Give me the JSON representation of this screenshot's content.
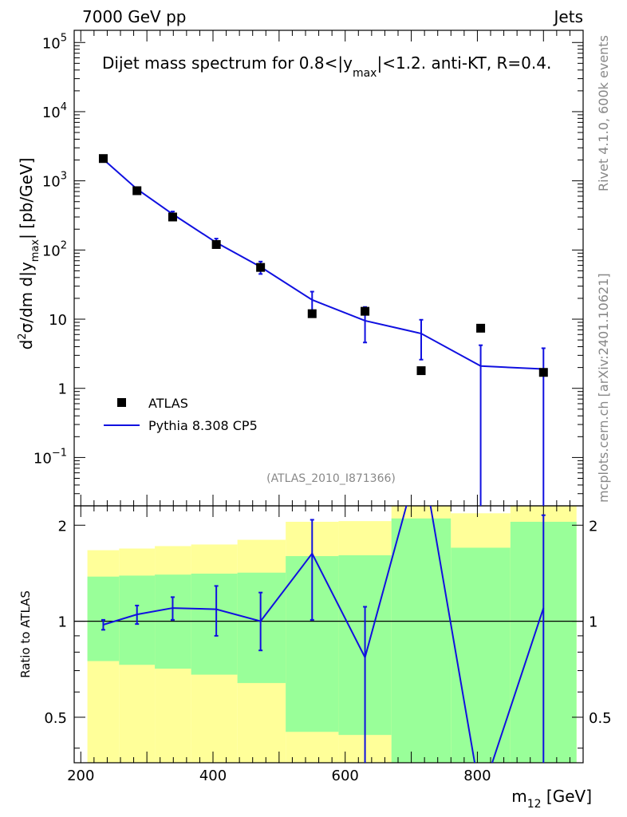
{
  "header": {
    "left": "7000 GeV pp",
    "right": "Jets"
  },
  "side_labels": {
    "rivet": "Rivet 4.1.0,  600k events",
    "mcplots": "mcplots.cern.ch [arXiv:2401.10621]"
  },
  "colors": {
    "mc": "#1010e0",
    "data": "#000000",
    "band_inner": "#99ff99",
    "band_outer": "#ffff99"
  },
  "chart_data": [
    {
      "type": "scatter",
      "panel": "main",
      "title": "Dijet mass spectrum for 0.8<|y_max|<1.2.  anti-KT, R=0.4.",
      "title_parts": [
        "Dijet mass spectrum for 0.8<|y",
        "max",
        "|<1.2.  anti-KT, R=0.4."
      ],
      "ylabel_parts": [
        "d",
        "2",
        "σ/dm d|y",
        "max",
        "| [pb/GeV]"
      ],
      "yscale": "log",
      "ylim": [
        0.02,
        150000
      ],
      "xlim": [
        190,
        960
      ],
      "legend": [
        "ATLAS",
        "Pythia 8.308 CP5"
      ],
      "analysis_id": "(ATLAS_2010_I871366)",
      "ytick_labels": [
        {
          "v": 100000,
          "base": "10",
          "exp": "5"
        },
        {
          "v": 10000,
          "base": "10",
          "exp": "4"
        },
        {
          "v": 1000,
          "base": "10",
          "exp": "3"
        },
        {
          "v": 100,
          "base": "10",
          "exp": "2"
        },
        {
          "v": 10,
          "base": "10",
          "exp": ""
        },
        {
          "v": 1,
          "base": "1",
          "exp": ""
        },
        {
          "v": 0.1,
          "base": "10",
          "exp": "−1"
        }
      ],
      "series": [
        {
          "name": "ATLAS",
          "kind": "markers",
          "x": [
            234,
            285,
            339,
            405,
            472,
            550,
            630,
            715,
            805,
            900
          ],
          "y": [
            2100,
            720,
            300,
            120,
            56,
            12,
            13,
            1.8,
            7.4,
            1.7
          ]
        },
        {
          "name": "Pythia 8.308 CP5",
          "kind": "line",
          "x": [
            234,
            285,
            339,
            405,
            472,
            550,
            630,
            715,
            805,
            900
          ],
          "y": [
            2050,
            760,
            330,
            128,
            57,
            19,
            9.5,
            6.2,
            2.1,
            1.9
          ],
          "err_lo": [
            2000,
            740,
            300,
            110,
            45,
            12,
            4.6,
            2.6,
            0.001,
            0.001
          ],
          "err_hi": [
            2100,
            780,
            360,
            146,
            68,
            25,
            15,
            9.8,
            4.2,
            3.8
          ]
        }
      ]
    },
    {
      "type": "line",
      "panel": "ratio",
      "ylabel": "Ratio to ATLAS",
      "xlabel_parts": [
        "m",
        "12",
        " [GeV]"
      ],
      "yscale": "log",
      "ylim": [
        0.36,
        2.3
      ],
      "xlim": [
        190,
        960
      ],
      "xticks": [
        200,
        400,
        600,
        800
      ],
      "ytick_labels": [
        {
          "v": 2,
          "t": "2"
        },
        {
          "v": 1,
          "t": "1"
        },
        {
          "v": 0.5,
          "t": "0.5"
        }
      ],
      "bands": [
        {
          "x0": 210,
          "x1": 258,
          "inner": [
            0.75,
            1.38
          ],
          "outer": [
            0.35,
            1.67
          ]
        },
        {
          "x0": 258,
          "x1": 312,
          "inner": [
            0.73,
            1.39
          ],
          "outer": [
            0.35,
            1.69
          ]
        },
        {
          "x0": 312,
          "x1": 367,
          "inner": [
            0.71,
            1.4
          ],
          "outer": [
            0.35,
            1.72
          ]
        },
        {
          "x0": 367,
          "x1": 437,
          "inner": [
            0.68,
            1.41
          ],
          "outer": [
            0.35,
            1.74
          ]
        },
        {
          "x0": 437,
          "x1": 510,
          "inner": [
            0.64,
            1.42
          ],
          "outer": [
            0.35,
            1.8
          ]
        },
        {
          "x0": 510,
          "x1": 590,
          "inner": [
            0.45,
            1.6
          ],
          "outer": [
            0.36,
            2.05
          ]
        },
        {
          "x0": 590,
          "x1": 670,
          "inner": [
            0.44,
            1.61
          ],
          "outer": [
            0.35,
            2.06
          ]
        },
        {
          "x0": 670,
          "x1": 760,
          "inner": [
            0.36,
            2.1
          ],
          "outer": [
            0.36,
            2.5
          ]
        },
        {
          "x0": 760,
          "x1": 850,
          "inner": [
            0.36,
            1.7
          ],
          "outer": [
            0.36,
            2.18
          ]
        },
        {
          "x0": 850,
          "x1": 950,
          "inner": [
            0.36,
            2.05
          ],
          "outer": [
            0.36,
            2.5
          ]
        }
      ],
      "series": [
        {
          "name": "Pythia 8.308 CP5 / ATLAS",
          "x": [
            234,
            285,
            339,
            405,
            472,
            550,
            630,
            715,
            805,
            900
          ],
          "y": [
            0.975,
            1.05,
            1.1,
            1.09,
            1.0,
            1.63,
            0.77,
            3.4,
            0.28,
            1.1
          ],
          "err_lo": [
            0.94,
            0.98,
            1.01,
            0.9,
            0.81,
            1.01,
            0.3,
            null,
            null,
            0.3
          ],
          "err_hi": [
            1.01,
            1.12,
            1.19,
            1.29,
            1.23,
            2.08,
            1.11,
            null,
            null,
            2.15
          ]
        }
      ]
    }
  ]
}
